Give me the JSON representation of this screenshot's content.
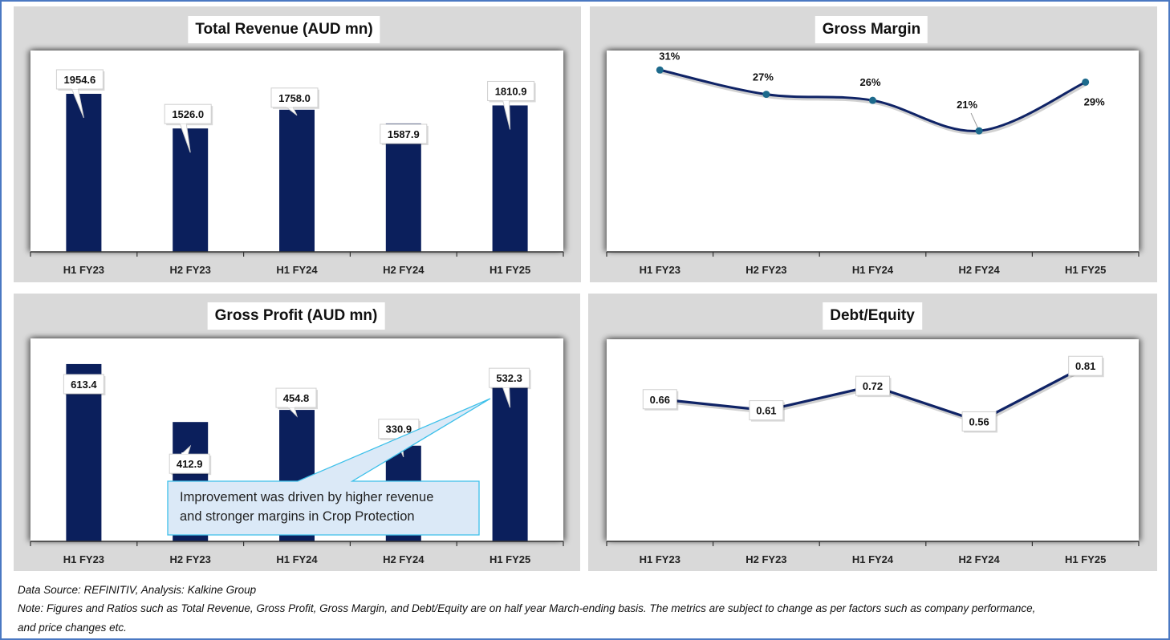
{
  "colors": {
    "frame": "#4a78c2",
    "panel_bg": "#d9d9d9",
    "bar": "#0b1f5c",
    "line": "#0f2366",
    "marker": "#1d6a8c",
    "callout_fill": "#dbe9f7",
    "callout_border": "#3cc0ea"
  },
  "chart_data": [
    {
      "id": "total_revenue",
      "type": "bar",
      "title": "Total Revenue (AUD mn)",
      "categories": [
        "H1 FY23",
        "H2 FY23",
        "H1 FY24",
        "H2 FY24",
        "H1 FY25"
      ],
      "values": [
        1954.6,
        1526.0,
        1758.0,
        1587.9,
        1810.9
      ],
      "data_labels": [
        "1954.6",
        "1526.0",
        "1758.0",
        "1587.9",
        "1810.9"
      ],
      "xlabel": "",
      "ylabel": "",
      "ylim": [
        0,
        2490
      ],
      "grid": false,
      "legend": "none"
    },
    {
      "id": "gross_margin",
      "type": "line",
      "title": "Gross Margin",
      "categories": [
        "H1 FY23",
        "H2 FY23",
        "H1 FY24",
        "H2 FY24",
        "H1 FY25"
      ],
      "values": [
        31,
        27,
        26,
        21,
        29
      ],
      "data_labels": [
        "31%",
        "27%",
        "26%",
        "21%",
        "29%"
      ],
      "unit": "%",
      "smooth": true,
      "xlabel": "",
      "ylabel": "",
      "ylim": [
        1.1,
        34.2
      ],
      "grid": false,
      "legend": "none"
    },
    {
      "id": "gross_profit",
      "type": "bar",
      "title": "Gross Profit (AUD mn)",
      "categories": [
        "H1 FY23",
        "H2 FY23",
        "H1 FY24",
        "H2 FY24",
        "H1 FY25"
      ],
      "values": [
        613.4,
        412.9,
        454.8,
        330.9,
        532.3
      ],
      "data_labels": [
        "613.4",
        "412.9",
        "454.8",
        "330.9",
        "532.3"
      ],
      "xlabel": "",
      "ylabel": "",
      "ylim": [
        0,
        702
      ],
      "grid": false,
      "legend": "none",
      "annotation": {
        "target_category": "H1 FY25",
        "lines": [
          "Improvement was driven by higher revenue",
          "and stronger margins in Crop Protection"
        ]
      }
    },
    {
      "id": "debt_equity",
      "type": "line",
      "title": "Debt/Equity",
      "categories": [
        "H1 FY23",
        "H2 FY23",
        "H1 FY24",
        "H2 FY24",
        "H1 FY25"
      ],
      "values": [
        0.66,
        0.61,
        0.72,
        0.56,
        0.81
      ],
      "data_labels": [
        "0.66",
        "0.61",
        "0.72",
        "0.56",
        "0.81"
      ],
      "smooth": false,
      "xlabel": "",
      "ylabel": "",
      "ylim": [
        0.02,
        0.93
      ],
      "grid": false,
      "legend": "none"
    }
  ],
  "footer": {
    "source": "Data Source: REFINITIV, Analysis: Kalkine Group",
    "note_line1": "Note: Figures and Ratios such as Total Revenue, Gross Profit, Gross Margin, and Debt/Equity are on half year March-ending basis. The metrics are subject to change as per factors such as company performance,",
    "note_line2": "and price changes etc."
  }
}
